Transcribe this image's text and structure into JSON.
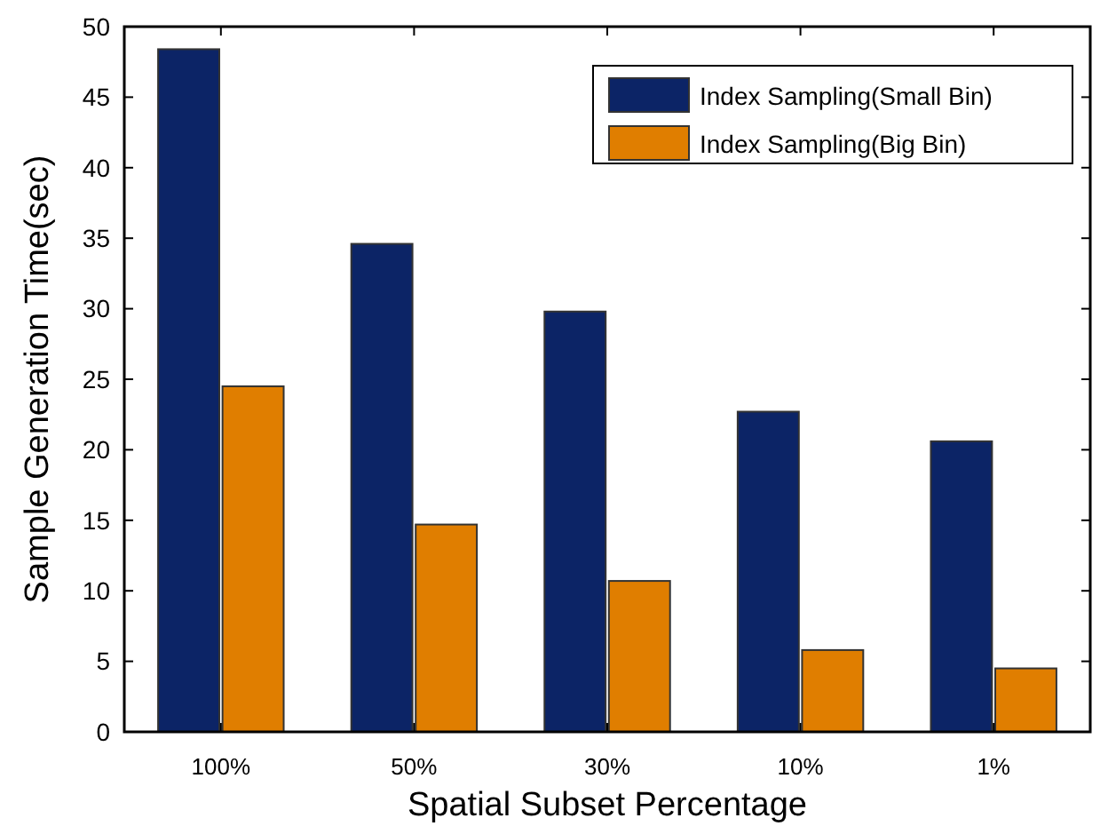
{
  "chart_data": {
    "type": "bar",
    "xlabel": "Spatial Subset Percentage",
    "ylabel": "Sample Generation Time(sec)",
    "categories": [
      "100%",
      "50%",
      "30%",
      "10%",
      "1%"
    ],
    "series": [
      {
        "name": "Index Sampling(Small Bin)",
        "color": "#0c2466",
        "values": [
          48.4,
          34.6,
          29.8,
          22.7,
          20.6
        ]
      },
      {
        "name": "Index Sampling(Big Bin)",
        "color": "#e07e00",
        "values": [
          24.5,
          14.7,
          10.7,
          5.8,
          4.5
        ]
      }
    ],
    "ylim": [
      0,
      50
    ],
    "yticks": [
      0,
      5,
      10,
      15,
      20,
      25,
      30,
      35,
      40,
      45,
      50
    ],
    "grid": false,
    "legend": "top right"
  }
}
